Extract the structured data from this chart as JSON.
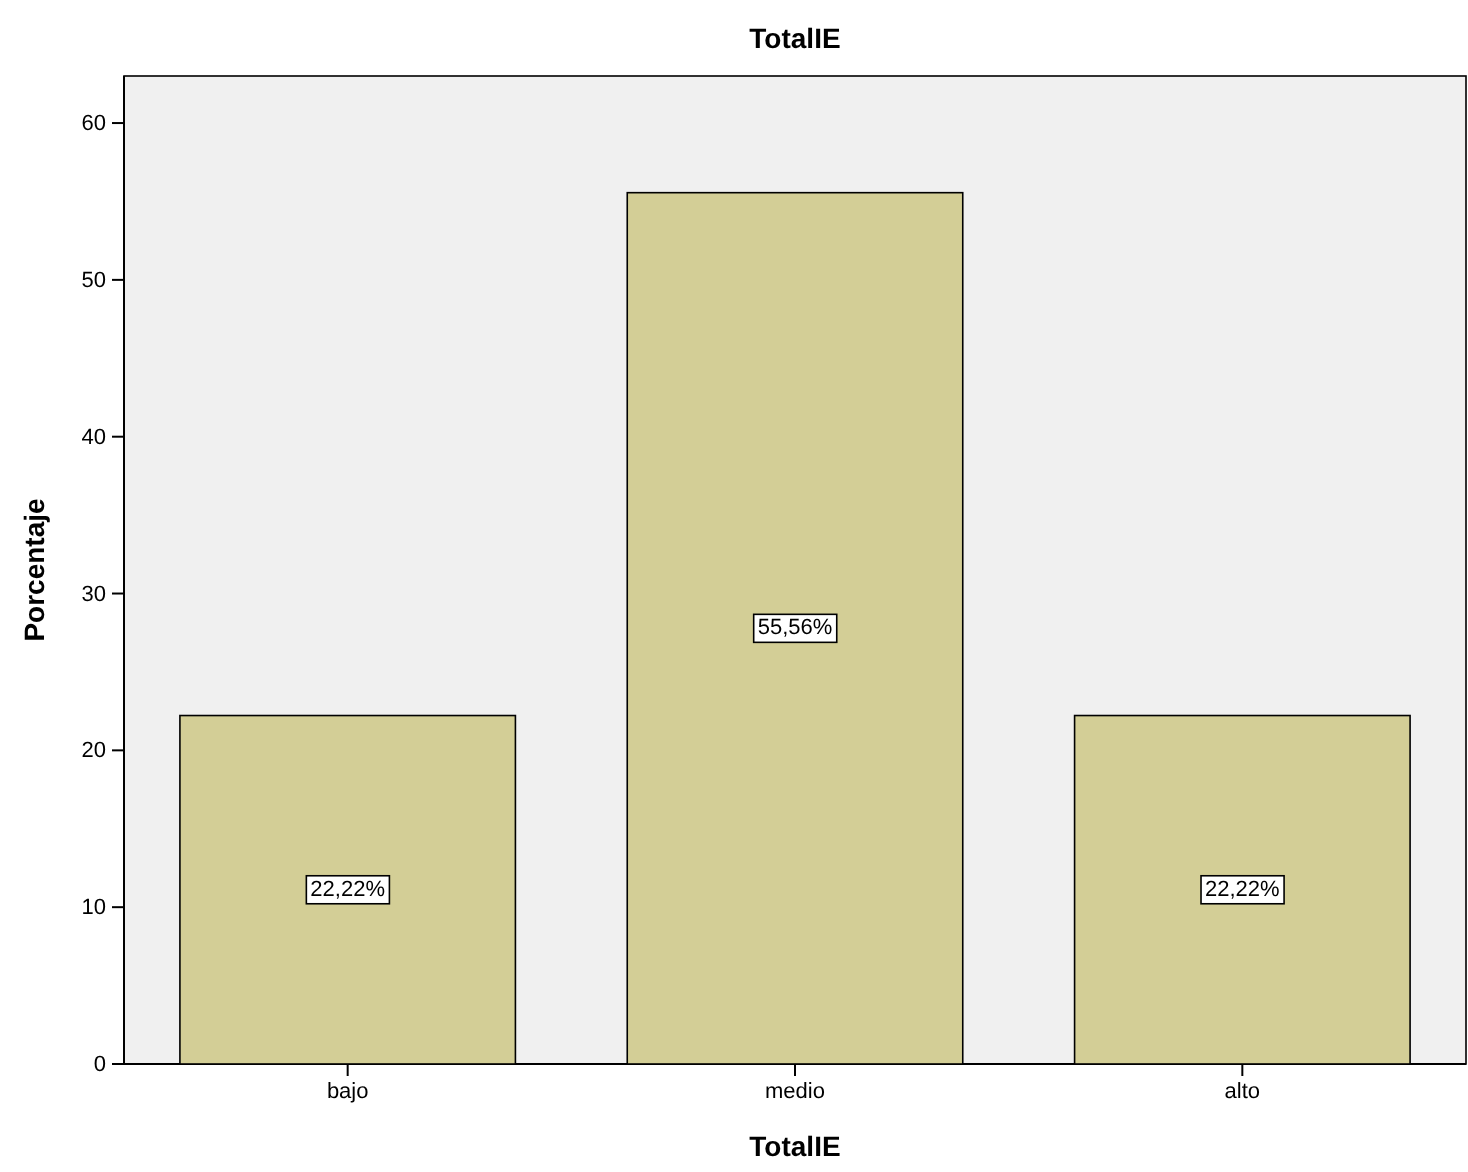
{
  "chart_data": {
    "type": "bar",
    "title": "TotalIE",
    "xlabel": "TotalIE",
    "ylabel": "Porcentaje",
    "categories": [
      "bajo",
      "medio",
      "alto"
    ],
    "values": [
      22.22,
      55.56,
      22.22
    ],
    "value_labels": [
      "22,22%",
      "55,56%",
      "22,22%"
    ],
    "color": "#d3ce96",
    "ylim": [
      0,
      63
    ],
    "yticks": [
      0,
      10,
      20,
      30,
      40,
      50,
      60
    ],
    "grid": false
  }
}
